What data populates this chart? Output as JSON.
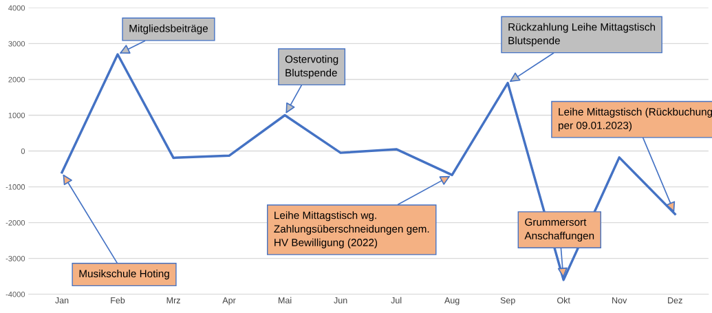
{
  "chart_data": {
    "type": "line",
    "categories": [
      "Jan",
      "Feb",
      "Mrz",
      "Apr",
      "Mai",
      "Jun",
      "Jul",
      "Aug",
      "Sep",
      "Okt",
      "Nov",
      "Dez"
    ],
    "series": [
      {
        "color": "#4472c4",
        "values": [
          -600,
          2700,
          -190,
          -130,
          1000,
          -50,
          50,
          -670,
          1900,
          -3600,
          -180,
          -1760
        ]
      }
    ],
    "ylim": [
      -4000,
      4000
    ],
    "yticks": [
      -4000,
      -3000,
      -2000,
      -1000,
      0,
      1000,
      2000,
      3000,
      4000
    ],
    "grid": "y",
    "marker": "none",
    "line_style": "solid",
    "annotations": [
      {
        "text": "Musikschule Hoting",
        "x": "Jan",
        "y": -600
      },
      {
        "text": "Mitgliedsbeiträge",
        "x": "Feb",
        "y": 2700
      },
      {
        "text": "Ostervoting\nBlutspende",
        "x": "Mai",
        "y": 1000
      },
      {
        "text": "Rückzahlung Leihe Mittagstisch\nBlutspende",
        "x": "Sep",
        "y": 1900
      },
      {
        "text": "Leihe Mittagstisch wg.\nZahlungsüberschneidungen gem.\nHV Bewilligung (2022)",
        "x": "Aug",
        "y": -670
      },
      {
        "text": "Grummersort\nAnschaffungen",
        "x": "Okt",
        "y": -3600
      },
      {
        "text": "Leihe Mittagstisch (Rückbuchung\nper 09.01.2023)",
        "x": "Dez",
        "y": -1760
      }
    ]
  }
}
